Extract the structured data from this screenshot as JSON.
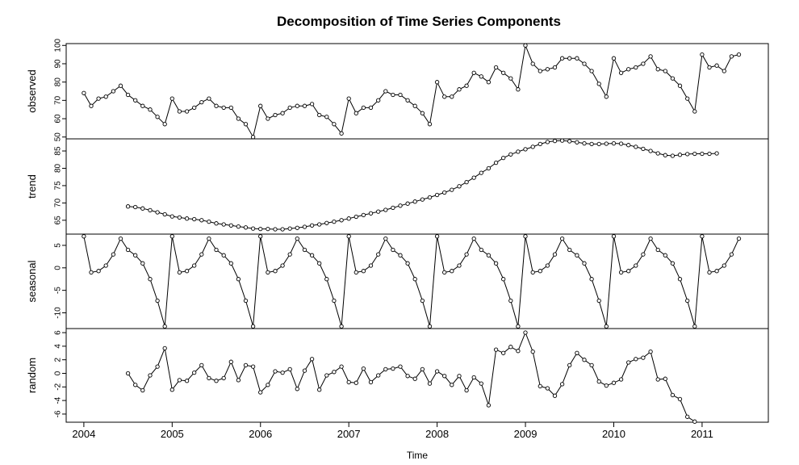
{
  "chart_data": {
    "type": "line",
    "title": "Decomposition of Time Series Components",
    "xlabel": "Time",
    "x_start": 2004.0,
    "x_step": 0.08333,
    "xticks": [
      2004,
      2005,
      2006,
      2007,
      2008,
      2009,
      2010,
      2011
    ],
    "xtick_labels": [
      "2004",
      "2005",
      "2006",
      "2007",
      "2008",
      "2009",
      "2010",
      "2011"
    ],
    "xlim": [
      2003.8,
      2011.75
    ],
    "panels": [
      {
        "name": "observed",
        "ylabel": "observed",
        "ylim": [
          49,
          101
        ],
        "yticks": [
          50,
          60,
          70,
          80,
          90,
          100
        ],
        "ytick_labels": [
          "50",
          "60",
          "70",
          "80",
          "90",
          "100"
        ],
        "x_offset": 0,
        "values": [
          74,
          67,
          71,
          72,
          75,
          78,
          73,
          70,
          67,
          65,
          61,
          57,
          71,
          64,
          64,
          66,
          69,
          71,
          67,
          66,
          66,
          60,
          57,
          50,
          67,
          60,
          62,
          63,
          66,
          67,
          67,
          68,
          62,
          61,
          57,
          52,
          71,
          63,
          66,
          66,
          70,
          75,
          73,
          73,
          70,
          67,
          63,
          57,
          80,
          72,
          72,
          76,
          78,
          85,
          83,
          80,
          88,
          85,
          82,
          76,
          100,
          90,
          86,
          87,
          88,
          93,
          93,
          93,
          90,
          86,
          79,
          72,
          93,
          85,
          87,
          88,
          90,
          94,
          87,
          86,
          82,
          78,
          71,
          64,
          95,
          88,
          89,
          86,
          94,
          95
        ]
      },
      {
        "name": "trend",
        "ylabel": "trend",
        "ylim": [
          61,
          88.5
        ],
        "yticks": [
          65,
          70,
          75,
          80,
          85
        ],
        "ytick_labels": [
          "65",
          "70",
          "75",
          "80",
          "85"
        ],
        "x_offset": 6,
        "values": [
          69.0,
          68.8,
          68.4,
          67.9,
          67.3,
          66.7,
          66.1,
          65.8,
          65.5,
          65.3,
          65.0,
          64.6,
          64.1,
          63.8,
          63.5,
          63.2,
          62.9,
          62.6,
          62.5,
          62.5,
          62.4,
          62.4,
          62.6,
          62.8,
          63.1,
          63.5,
          63.8,
          64.2,
          64.6,
          65.0,
          65.5,
          66.0,
          66.5,
          67.0,
          67.5,
          68.0,
          68.6,
          69.2,
          69.8,
          70.4,
          71.0,
          71.6,
          72.3,
          73.0,
          73.8,
          74.8,
          76.0,
          77.3,
          78.7,
          80.0,
          81.6,
          83.0,
          84.0,
          84.8,
          85.5,
          86.2,
          87.0,
          87.6,
          87.9,
          88.0,
          87.8,
          87.5,
          87.2,
          87.0,
          87.0,
          87.1,
          87.2,
          87.1,
          86.7,
          86.2,
          85.6,
          85.0,
          84.3,
          83.8,
          83.6,
          83.9,
          84.1,
          84.2,
          84.2,
          84.2,
          84.3
        ]
      },
      {
        "name": "seasonal",
        "ylabel": "seasonal",
        "ylim": [
          -13.5,
          7.5
        ],
        "yticks": [
          -10,
          -5,
          0,
          5
        ],
        "ytick_labels": [
          "-10",
          "-5",
          "0",
          "5"
        ],
        "x_offset": 0,
        "pattern": [
          7.0,
          -1.0,
          -0.7,
          0.5,
          3.0,
          6.5,
          4.0,
          2.8,
          1.0,
          -2.5,
          -7.3,
          -13.0
        ],
        "count": 90
      },
      {
        "name": "random",
        "ylabel": "random",
        "ylim": [
          -7.2,
          6.6
        ],
        "yticks": [
          -6,
          -4,
          -2,
          0,
          2,
          4,
          6
        ],
        "ytick_labels": [
          "-6",
          "-4",
          "-2",
          "0",
          "2",
          "4",
          "6"
        ],
        "x_offset": 6,
        "values": [
          0.0,
          -1.7,
          -2.5,
          -0.3,
          1.0,
          3.7,
          -2.4,
          -1.0,
          -1.1,
          0.1,
          1.2,
          -0.7,
          -1.1,
          -0.7,
          1.7,
          -1.0,
          1.2,
          1.0,
          -2.8,
          -1.7,
          0.3,
          0.1,
          0.6,
          -2.3,
          0.4,
          2.1,
          -2.4,
          -0.3,
          0.2,
          1.0,
          -1.3,
          -1.4,
          0.7,
          -1.3,
          -0.3,
          0.6,
          0.7,
          1.0,
          -0.4,
          -0.8,
          0.6,
          -1.5,
          0.3,
          -0.4,
          -1.7,
          -0.4,
          -2.5,
          -0.6,
          -1.5,
          -4.7,
          3.5,
          3.0,
          3.9,
          3.3,
          6.0,
          3.2,
          -1.9,
          -2.2,
          -3.3,
          -1.6,
          1.2,
          3.0,
          2.0,
          1.2,
          -1.2,
          -1.8,
          -1.4,
          -0.9,
          1.6,
          2.1,
          2.3,
          3.2,
          -0.9,
          -0.8,
          -3.2,
          -3.8,
          -6.4,
          -7.1
        ]
      }
    ]
  }
}
